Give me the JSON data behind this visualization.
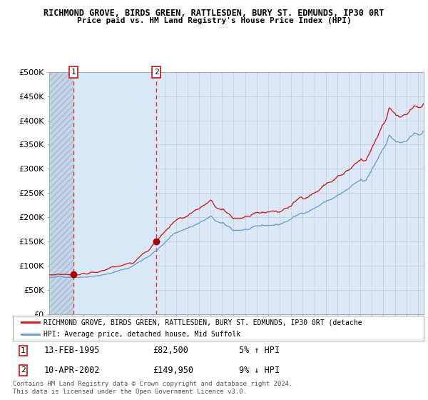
{
  "title1": "RICHMOND GROVE, BIRDS GREEN, RATTLESDEN, BURY ST. EDMUNDS, IP30 0RT",
  "title2": "Price paid vs. HM Land Registry's House Price Index (HPI)",
  "background_color": "#dce8f5",
  "hatch_region_color": "#c5d5e8",
  "light_blue_region_color": "#dce8f5",
  "grid_color": "#c0cfe0",
  "sale1_date": 1995.12,
  "sale1_price": 82500,
  "sale2_date": 2002.29,
  "sale2_price": 149950,
  "red_line_color": "#cc1111",
  "blue_line_color": "#6699cc",
  "dot_color": "#aa0000",
  "xmin": 1993.0,
  "xmax": 2025.5,
  "ymin": 0,
  "ymax": 500000,
  "legend_label_red": "RICHMOND GROVE, BIRDS GREEN, RATTLESDEN, BURY ST. EDMUNDS, IP30 0RT (detache",
  "legend_label_blue": "HPI: Average price, detached house, Mid Suffolk",
  "footnote": "Contains HM Land Registry data © Crown copyright and database right 2024.\nThis data is licensed under the Open Government Licence v3.0.",
  "yticks": [
    0,
    50000,
    100000,
    150000,
    200000,
    250000,
    300000,
    350000,
    400000,
    450000,
    500000
  ],
  "ytick_labels": [
    "£0",
    "£50K",
    "£100K",
    "£150K",
    "£200K",
    "£250K",
    "£300K",
    "£350K",
    "£400K",
    "£450K",
    "£500K"
  ]
}
